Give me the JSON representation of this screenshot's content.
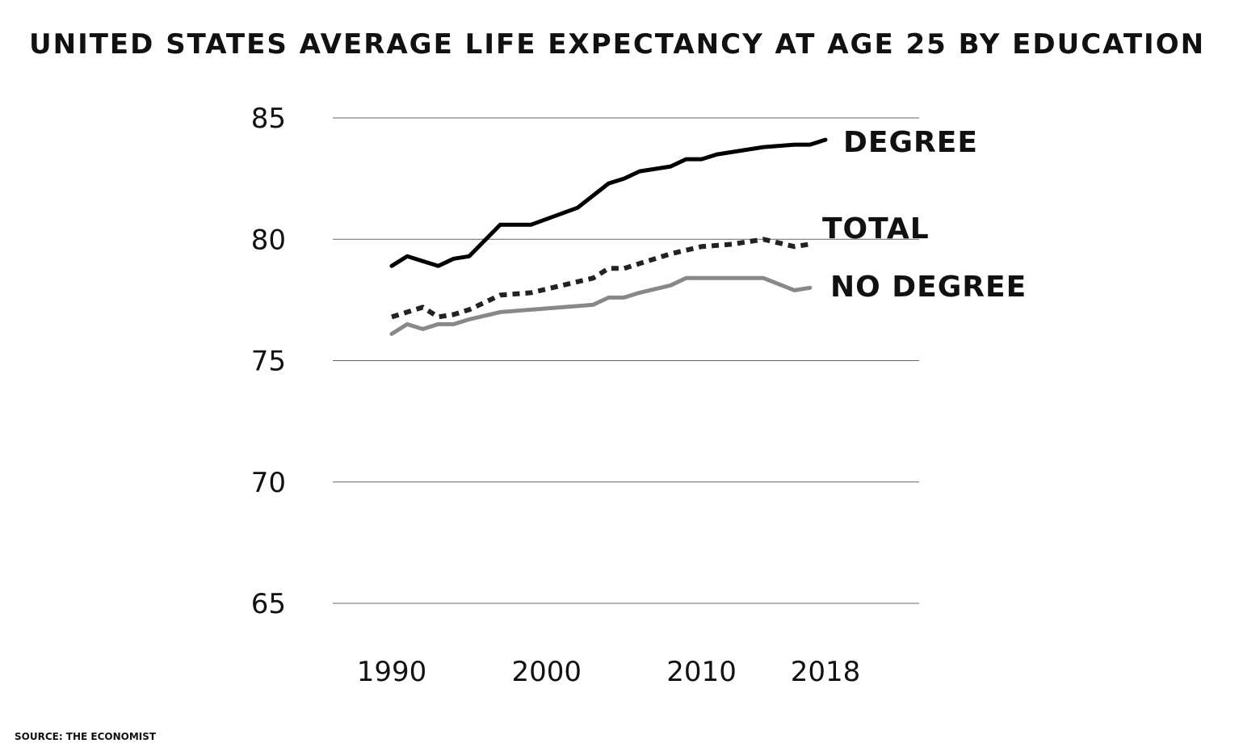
{
  "chart_data": {
    "type": "line",
    "title": "UNITED STATES AVERAGE LIFE EXPECTANCY AT AGE 25 BY EDUCATION",
    "source": "SOURCE: THE ECONOMIST",
    "xlabel": "",
    "ylabel": "",
    "ylim": [
      65,
      85
    ],
    "xlim": [
      1990,
      2018
    ],
    "yticks": [
      85,
      80,
      75,
      70,
      65
    ],
    "xticks": [
      1990,
      2000,
      2010,
      2018
    ],
    "grid": true,
    "legend": "none",
    "series": [
      {
        "name": "DEGREE",
        "color": "#000000",
        "style": "solid",
        "x": [
          1990,
          1991,
          1993,
          1994,
          1995,
          1997,
          1999,
          2002,
          2004,
          2005,
          2006,
          2008,
          2009,
          2010,
          2011,
          2013,
          2014,
          2016,
          2017,
          2018
        ],
        "values": [
          78.9,
          79.3,
          78.9,
          79.2,
          79.3,
          80.6,
          80.6,
          81.3,
          82.3,
          82.5,
          82.8,
          83.0,
          83.3,
          83.3,
          83.5,
          83.7,
          83.8,
          83.9,
          83.9,
          84.1
        ]
      },
      {
        "name": "TOTAL",
        "color": "#222222",
        "style": "dashed",
        "x": [
          1990,
          1991,
          1992,
          1993,
          1994,
          1995,
          1997,
          1999,
          2001,
          2003,
          2004,
          2005,
          2006,
          2008,
          2010,
          2012,
          2014,
          2016,
          2017
        ],
        "values": [
          76.8,
          77.0,
          77.2,
          76.8,
          76.9,
          77.1,
          77.7,
          77.8,
          78.1,
          78.4,
          78.8,
          78.8,
          79.0,
          79.4,
          79.7,
          79.8,
          80.0,
          79.7,
          79.8
        ]
      },
      {
        "name": "NO DEGREE",
        "color": "#888888",
        "style": "solid",
        "x": [
          1990,
          1991,
          1992,
          1993,
          1994,
          1995,
          1997,
          1999,
          2001,
          2003,
          2004,
          2005,
          2006,
          2008,
          2009,
          2010,
          2012,
          2014,
          2016,
          2017
        ],
        "values": [
          76.1,
          76.5,
          76.3,
          76.5,
          76.5,
          76.7,
          77.0,
          77.1,
          77.2,
          77.3,
          77.6,
          77.6,
          77.8,
          78.1,
          78.4,
          78.4,
          78.4,
          78.4,
          77.9,
          78.0
        ]
      }
    ]
  }
}
